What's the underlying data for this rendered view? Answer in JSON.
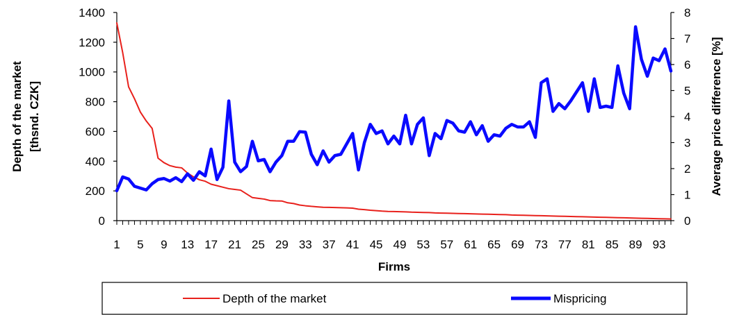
{
  "chart_data": {
    "type": "line",
    "title": "",
    "xlabel": "Firms",
    "ylabel": "Depth of the market [thsnd. CZK]",
    "ylabel_lines": [
      "Depth of the market",
      "[thsnd. CZK]"
    ],
    "y2label": "Average price difference [%]",
    "x_ticks": [
      "1",
      "5",
      "9",
      "13",
      "17",
      "21",
      "25",
      "29",
      "33",
      "37",
      "41",
      "45",
      "49",
      "53",
      "57",
      "61",
      "65",
      "69",
      "73",
      "77",
      "81",
      "85",
      "89",
      "93"
    ],
    "ylim": [
      0,
      1400
    ],
    "y_ticks": [
      "0",
      "200",
      "400",
      "600",
      "800",
      "1000",
      "1200",
      "1400"
    ],
    "y2lim": [
      0,
      8
    ],
    "y2_ticks": [
      "0",
      "1",
      "2",
      "3",
      "4",
      "5",
      "6",
      "7",
      "8"
    ],
    "x_count": 95,
    "grid": false,
    "legend_position": "bottom",
    "series": [
      {
        "name": "Depth of the market",
        "axis": "left",
        "color": "#e8201b",
        "values": [
          1330,
          1130,
          900,
          820,
          730,
          670,
          620,
          420,
          390,
          370,
          360,
          355,
          320,
          295,
          275,
          265,
          245,
          235,
          225,
          215,
          210,
          205,
          180,
          155,
          150,
          145,
          135,
          133,
          132,
          120,
          115,
          105,
          100,
          96,
          93,
          90,
          89,
          88,
          87,
          86,
          84,
          77,
          74,
          70,
          67,
          64,
          62,
          61,
          60,
          59,
          57,
          56,
          55,
          54,
          52,
          51,
          50,
          49,
          48,
          47,
          46,
          45,
          44,
          43,
          42,
          41,
          40,
          38,
          37,
          36,
          35,
          34,
          33,
          32,
          31,
          30,
          29,
          28,
          27,
          26,
          25,
          24,
          23,
          22,
          21,
          20,
          19,
          18,
          17,
          16,
          15,
          14,
          13,
          12,
          11
        ]
      },
      {
        "name": "Mispricing",
        "axis": "right",
        "color": "#0a0aff",
        "values": [
          1.15,
          1.68,
          1.6,
          1.32,
          1.25,
          1.18,
          1.42,
          1.58,
          1.62,
          1.52,
          1.65,
          1.5,
          1.8,
          1.55,
          1.88,
          1.72,
          2.75,
          1.58,
          2.05,
          4.6,
          2.25,
          1.88,
          2.08,
          3.05,
          2.3,
          2.35,
          1.88,
          2.25,
          2.5,
          3.05,
          3.05,
          3.42,
          3.4,
          2.55,
          2.15,
          2.68,
          2.25,
          2.5,
          2.55,
          2.95,
          3.35,
          1.95,
          3.0,
          3.7,
          3.35,
          3.45,
          2.95,
          3.25,
          2.95,
          4.05,
          2.95,
          3.7,
          3.95,
          2.5,
          3.35,
          3.15,
          3.85,
          3.75,
          3.45,
          3.4,
          3.8,
          3.3,
          3.65,
          3.05,
          3.3,
          3.25,
          3.55,
          3.7,
          3.6,
          3.6,
          3.8,
          3.2,
          5.3,
          5.45,
          4.2,
          4.5,
          4.3,
          4.6,
          4.95,
          5.3,
          4.2,
          5.45,
          4.35,
          4.4,
          4.35,
          5.95,
          4.9,
          4.3,
          7.45,
          6.2,
          5.55,
          6.25,
          6.15,
          6.6,
          5.75
        ]
      }
    ]
  }
}
